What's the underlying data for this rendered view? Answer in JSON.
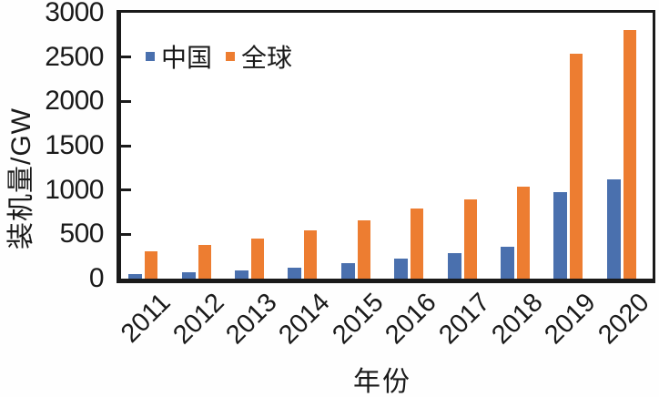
{
  "figure": {
    "y_axis_title": "装机量/GW",
    "x_axis_title": "年份"
  },
  "legend": {
    "items": [
      {
        "label": "中国",
        "color": "#4a70ae"
      },
      {
        "label": "全球",
        "color": "#ed7d31"
      }
    ]
  },
  "colors": {
    "china_bar": "#4a70ae",
    "global_bar": "#ed7d31",
    "axis": "#1a1a1a",
    "background": "#ffffff"
  },
  "chart_data": {
    "type": "bar",
    "title": "",
    "xlabel": "年份",
    "ylabel": "装机量/GW",
    "categories": [
      "2011",
      "2012",
      "2013",
      "2014",
      "2015",
      "2016",
      "2017",
      "2018",
      "2019",
      "2020"
    ],
    "series": [
      {
        "name": "中国",
        "color": "#4a70ae",
        "values": [
          55,
          75,
          95,
          120,
          170,
          230,
          290,
          355,
          975,
          1115
        ]
      },
      {
        "name": "全球",
        "color": "#ed7d31",
        "values": [
          310,
          385,
          455,
          545,
          660,
          790,
          890,
          1040,
          2540,
          2810
        ]
      }
    ],
    "ylim": [
      0,
      3000
    ],
    "y_tick_step": 500,
    "y_tick_labels": [
      "0",
      "500",
      "1000",
      "1500",
      "2000",
      "2500",
      "3000"
    ],
    "grid": false,
    "legend_position": "upper-left-inside"
  }
}
